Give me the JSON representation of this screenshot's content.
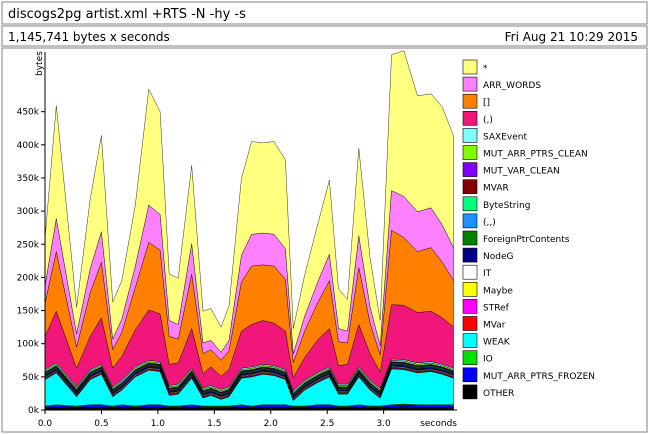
{
  "header": {
    "program": "discogs2pg artist.xml +RTS -N -hy -s",
    "summary": "1,145,741 bytes x seconds",
    "date": "Fri Aug 21 10:29 2015"
  },
  "chart_data": {
    "type": "area",
    "stacked": true,
    "title": "discogs2pg artist.xml +RTS -N -hy -s",
    "xlabel": "seconds",
    "ylabel": "bytes",
    "xlim": [
      0,
      3.65
    ],
    "ylim": [
      0,
      540000
    ],
    "xticks": [
      0.0,
      0.5,
      1.0,
      1.5,
      2.0,
      2.5,
      3.0
    ],
    "xtick_labels": [
      "0.0",
      "0.5",
      "1.0",
      "1.5",
      "2.0",
      "2.5",
      "3.0"
    ],
    "yticks": [
      0,
      50000,
      100000,
      150000,
      200000,
      250000,
      300000,
      350000,
      400000,
      450000
    ],
    "ytick_labels": [
      "0k",
      "50k",
      "100k",
      "150k",
      "200k",
      "250k",
      "300k",
      "350k",
      "400k",
      "450k"
    ],
    "legend_position": "right",
    "grid": false,
    "x": [
      0.0,
      0.1,
      0.28,
      0.4,
      0.5,
      0.6,
      0.68,
      0.8,
      0.92,
      1.02,
      1.1,
      1.18,
      1.3,
      1.4,
      1.47,
      1.56,
      1.63,
      1.74,
      1.83,
      1.93,
      2.03,
      2.13,
      2.2,
      2.3,
      2.42,
      2.52,
      2.6,
      2.68,
      2.78,
      2.88,
      2.97,
      3.07,
      3.18,
      3.3,
      3.42,
      3.52,
      3.62
    ],
    "series": [
      {
        "name": "OTHER",
        "color": "#000000",
        "values": [
          3000,
          4000,
          3000,
          4000,
          4000,
          3000,
          4000,
          3000,
          4000,
          4000,
          3000,
          3000,
          4000,
          3000,
          3000,
          3000,
          3000,
          4000,
          3000,
          4000,
          4000,
          4000,
          3000,
          3000,
          4000,
          4000,
          3000,
          3000,
          4000,
          3000,
          3000,
          4000,
          5000,
          4000,
          4000,
          4000,
          4000
        ]
      },
      {
        "name": "MUT_ARR_PTRS_FROZEN",
        "color": "#0000ff",
        "values": [
          2000,
          3000,
          2000,
          3000,
          3000,
          2000,
          3000,
          2000,
          3000,
          3000,
          2000,
          2000,
          3000,
          2000,
          2000,
          2000,
          2000,
          3000,
          2000,
          3000,
          3000,
          3000,
          2000,
          2000,
          3000,
          3000,
          2000,
          2000,
          3000,
          2000,
          2000,
          3000,
          3000,
          3000,
          3000,
          3000,
          3000
        ]
      },
      {
        "name": "IO",
        "color": "#00e000",
        "values": [
          1000,
          1000,
          1000,
          1000,
          1000,
          1000,
          1000,
          1000,
          1000,
          1000,
          1000,
          1000,
          1000,
          1000,
          1000,
          1000,
          1000,
          1000,
          1000,
          1000,
          1000,
          1000,
          1000,
          1000,
          1000,
          1000,
          1000,
          1000,
          1000,
          1000,
          1000,
          1000,
          1000,
          1000,
          1000,
          1000,
          1000
        ]
      },
      {
        "name": "WEAK",
        "color": "#00ffff",
        "values": [
          40000,
          48000,
          14000,
          38000,
          46000,
          14000,
          22000,
          44000,
          52000,
          50000,
          16000,
          18000,
          40000,
          12000,
          16000,
          10000,
          14000,
          40000,
          44000,
          46000,
          44000,
          38000,
          8000,
          24000,
          34000,
          42000,
          18000,
          18000,
          42000,
          24000,
          12000,
          54000,
          52000,
          48000,
          50000,
          46000,
          40000
        ]
      },
      {
        "name": "MVar",
        "color": "#ff0000",
        "values": [
          1000,
          1000,
          1000,
          1000,
          1000,
          1000,
          1000,
          1000,
          1000,
          1000,
          1000,
          1000,
          1000,
          1000,
          1000,
          1000,
          1000,
          1000,
          1000,
          1000,
          1000,
          1000,
          1000,
          1000,
          1000,
          1000,
          1000,
          1000,
          1000,
          1000,
          1000,
          1000,
          1000,
          1000,
          1000,
          1000,
          1000
        ]
      },
      {
        "name": "STRef",
        "color": "#ff00ff",
        "values": [
          1000,
          1000,
          1000,
          1000,
          1000,
          1000,
          1000,
          1000,
          1000,
          1000,
          1000,
          1000,
          1000,
          1000,
          1000,
          1000,
          1000,
          1000,
          1000,
          1000,
          1000,
          1000,
          1000,
          1000,
          1000,
          1000,
          1000,
          1000,
          1000,
          1000,
          1000,
          1000,
          1000,
          1000,
          1000,
          1000,
          1000
        ]
      },
      {
        "name": "Maybe",
        "color": "#ffff00",
        "values": [
          1000,
          1000,
          1000,
          1000,
          1000,
          1000,
          1000,
          1000,
          1000,
          1000,
          1000,
          1000,
          1000,
          1000,
          1000,
          1000,
          1000,
          1000,
          1000,
          1000,
          1000,
          1000,
          1000,
          1000,
          1000,
          1000,
          1000,
          1000,
          1000,
          1000,
          1000,
          1000,
          1000,
          1000,
          1000,
          1000,
          1000
        ]
      },
      {
        "name": "IT",
        "color": "#ffffff",
        "values": [
          1000,
          1000,
          1000,
          1000,
          1000,
          1000,
          1000,
          1000,
          1000,
          1000,
          1000,
          1000,
          1000,
          1000,
          1000,
          1000,
          1000,
          1000,
          1000,
          1000,
          1000,
          1000,
          1000,
          1000,
          1000,
          1000,
          1000,
          1000,
          1000,
          1000,
          1000,
          1000,
          1000,
          1000,
          1000,
          1000,
          1000
        ]
      },
      {
        "name": "NodeG",
        "color": "#000080",
        "values": [
          2000,
          2000,
          2000,
          2000,
          2000,
          2000,
          2000,
          2000,
          2000,
          2000,
          2000,
          2000,
          2000,
          2000,
          2000,
          2000,
          2000,
          2000,
          2000,
          2000,
          2000,
          2000,
          2000,
          2000,
          2000,
          2000,
          2000,
          2000,
          2000,
          2000,
          2000,
          2000,
          2000,
          2000,
          2000,
          2000,
          2000
        ]
      },
      {
        "name": "ForeignPtrContents",
        "color": "#008000",
        "values": [
          1000,
          1000,
          1000,
          1000,
          1000,
          1000,
          1000,
          1000,
          1000,
          1000,
          1000,
          1000,
          1000,
          1000,
          1000,
          1000,
          1000,
          1000,
          1000,
          1000,
          1000,
          1000,
          1000,
          1000,
          1000,
          1000,
          1000,
          1000,
          1000,
          1000,
          1000,
          1000,
          1000,
          1000,
          1000,
          1000,
          1000
        ]
      },
      {
        "name": "(,,)",
        "color": "#1e90ff",
        "values": [
          1000,
          1000,
          1000,
          1000,
          1000,
          1000,
          1000,
          1000,
          1000,
          1000,
          1000,
          1000,
          1000,
          1000,
          1000,
          1000,
          1000,
          1000,
          1000,
          1000,
          1000,
          1000,
          1000,
          1000,
          1000,
          1000,
          1000,
          1000,
          1000,
          1000,
          1000,
          1000,
          1000,
          1000,
          1000,
          1000,
          1000
        ]
      },
      {
        "name": "ByteString",
        "color": "#00ff80",
        "values": [
          1000,
          1000,
          1000,
          1000,
          1000,
          1000,
          1000,
          1000,
          1000,
          1000,
          1000,
          1000,
          1000,
          1000,
          1000,
          1000,
          1000,
          1000,
          1000,
          1000,
          1000,
          1000,
          1000,
          1000,
          1000,
          1000,
          1000,
          1000,
          1000,
          1000,
          1000,
          1000,
          1000,
          1000,
          1000,
          1000,
          1000
        ]
      },
      {
        "name": "MVAR",
        "color": "#800000",
        "values": [
          1000,
          1000,
          1000,
          1000,
          1000,
          1000,
          1000,
          1000,
          1000,
          1000,
          1000,
          1000,
          1000,
          1000,
          1000,
          1000,
          1000,
          1000,
          1000,
          1000,
          1000,
          1000,
          1000,
          1000,
          1000,
          1000,
          1000,
          1000,
          1000,
          1000,
          1000,
          1000,
          1000,
          1000,
          1000,
          1000,
          1000
        ]
      },
      {
        "name": "MUT_VAR_CLEAN",
        "color": "#8000ff",
        "values": [
          1000,
          1000,
          1000,
          1000,
          1000,
          1000,
          1000,
          1000,
          1000,
          1000,
          1000,
          1000,
          1000,
          1000,
          1000,
          1000,
          1000,
          1000,
          1000,
          1000,
          1000,
          1000,
          1000,
          1000,
          1000,
          1000,
          1000,
          1000,
          1000,
          1000,
          1000,
          1000,
          1000,
          1000,
          1000,
          1000,
          1000
        ]
      },
      {
        "name": "MUT_ARR_PTRS_CLEAN",
        "color": "#80ff00",
        "values": [
          2000,
          2000,
          2000,
          2000,
          2000,
          2000,
          2000,
          2000,
          2000,
          2000,
          2000,
          2000,
          2000,
          2000,
          2000,
          2000,
          2000,
          2000,
          2000,
          2000,
          2000,
          2000,
          2000,
          2000,
          2000,
          2000,
          2000,
          2000,
          2000,
          2000,
          2000,
          2000,
          2000,
          2000,
          2000,
          2000,
          2000
        ]
      },
      {
        "name": "SAXEvent",
        "color": "#80ffff",
        "values": [
          2000,
          2000,
          2000,
          2000,
          2000,
          2000,
          2000,
          2000,
          2000,
          2000,
          2000,
          2000,
          2000,
          2000,
          2000,
          2000,
          2000,
          2000,
          2000,
          2000,
          2000,
          2000,
          2000,
          2000,
          2000,
          2000,
          2000,
          2000,
          2000,
          2000,
          2000,
          2000,
          2000,
          2000,
          2000,
          2000,
          2000
        ]
      },
      {
        "name": "(,)",
        "color": "#f0167a",
        "values": [
          50000,
          78000,
          28000,
          50000,
          70000,
          28000,
          36000,
          56000,
          76000,
          72000,
          32000,
          32000,
          60000,
          22000,
          28000,
          20000,
          26000,
          56000,
          64000,
          66000,
          64000,
          58000,
          20000,
          34000,
          50000,
          58000,
          28000,
          30000,
          64000,
          40000,
          24000,
          82000,
          82000,
          76000,
          76000,
          70000,
          62000
        ]
      },
      {
        "name": "[]",
        "color": "#ff8000",
        "values": [
          50000,
          90000,
          32000,
          66000,
          84000,
          28000,
          36000,
          64000,
          102000,
          96000,
          42000,
          36000,
          82000,
          30000,
          26000,
          24000,
          28000,
          74000,
          88000,
          84000,
          86000,
          78000,
          22000,
          40000,
          56000,
          72000,
          36000,
          32000,
          86000,
          46000,
          26000,
          112000,
          102000,
          92000,
          96000,
          84000,
          70000
        ]
      },
      {
        "name": "ARR_WORDS",
        "color": "#ff80ff",
        "values": [
          26000,
          50000,
          20000,
          36000,
          46000,
          16000,
          20000,
          32000,
          56000,
          54000,
          24000,
          22000,
          46000,
          16000,
          14000,
          12000,
          16000,
          40000,
          48000,
          48000,
          48000,
          46000,
          14000,
          22000,
          32000,
          40000,
          20000,
          18000,
          48000,
          24000,
          14000,
          60000,
          62000,
          60000,
          60000,
          56000,
          50000
        ]
      },
      {
        "name": "*",
        "color": "#ffff80",
        "values": [
          72000,
          170000,
          40000,
          105000,
          145000,
          56000,
          58000,
          92000,
          175000,
          155000,
          70000,
          70000,
          118000,
          48000,
          48000,
          38000,
          52000,
          116000,
          140000,
          136000,
          140000,
          134000,
          38000,
          62000,
          88000,
          112000,
          60000,
          48000,
          132000,
          74000,
          38000,
          205000,
          220000,
          175000,
          172000,
          178000,
          168000
        ]
      }
    ]
  }
}
